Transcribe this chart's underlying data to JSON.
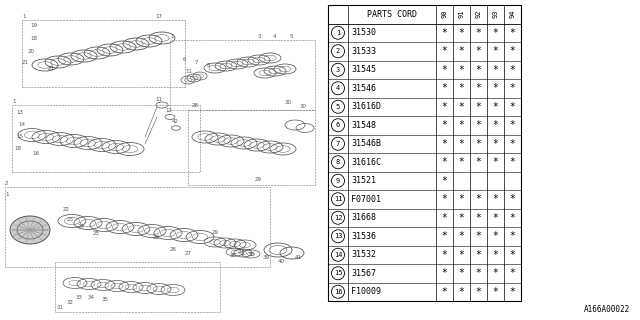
{
  "diagram_code": "A166A00022",
  "col_header": "PARTS CORD",
  "year_cols": [
    "90",
    "91",
    "92",
    "93",
    "94"
  ],
  "rows": [
    {
      "num": "1",
      "part": "31530",
      "marks": [
        true,
        true,
        true,
        true,
        true
      ]
    },
    {
      "num": "2",
      "part": "31533",
      "marks": [
        true,
        true,
        true,
        true,
        true
      ]
    },
    {
      "num": "3",
      "part": "31545",
      "marks": [
        true,
        true,
        true,
        true,
        true
      ]
    },
    {
      "num": "4",
      "part": "31546",
      "marks": [
        true,
        true,
        true,
        true,
        true
      ]
    },
    {
      "num": "5",
      "part": "31616D",
      "marks": [
        true,
        true,
        true,
        true,
        true
      ]
    },
    {
      "num": "6",
      "part": "31548",
      "marks": [
        true,
        true,
        true,
        true,
        true
      ]
    },
    {
      "num": "7",
      "part": "31546B",
      "marks": [
        true,
        true,
        true,
        true,
        true
      ]
    },
    {
      "num": "8",
      "part": "31616C",
      "marks": [
        true,
        true,
        true,
        true,
        true
      ]
    },
    {
      "num": "9",
      "part": "31521",
      "marks": [
        true,
        false,
        false,
        false,
        false
      ]
    },
    {
      "num": "11",
      "part": "F07001",
      "marks": [
        true,
        true,
        true,
        true,
        true
      ]
    },
    {
      "num": "12",
      "part": "31668",
      "marks": [
        true,
        true,
        true,
        true,
        true
      ]
    },
    {
      "num": "13",
      "part": "31536",
      "marks": [
        true,
        true,
        true,
        true,
        true
      ]
    },
    {
      "num": "14",
      "part": "31532",
      "marks": [
        true,
        true,
        true,
        true,
        true
      ]
    },
    {
      "num": "15",
      "part": "31567",
      "marks": [
        true,
        true,
        true,
        true,
        true
      ]
    },
    {
      "num": "16",
      "part": "F10009",
      "marks": [
        true,
        true,
        true,
        true,
        true
      ]
    }
  ],
  "bg_color": "#ffffff",
  "line_color": "#000000",
  "text_color": "#000000",
  "gc": "#555555"
}
